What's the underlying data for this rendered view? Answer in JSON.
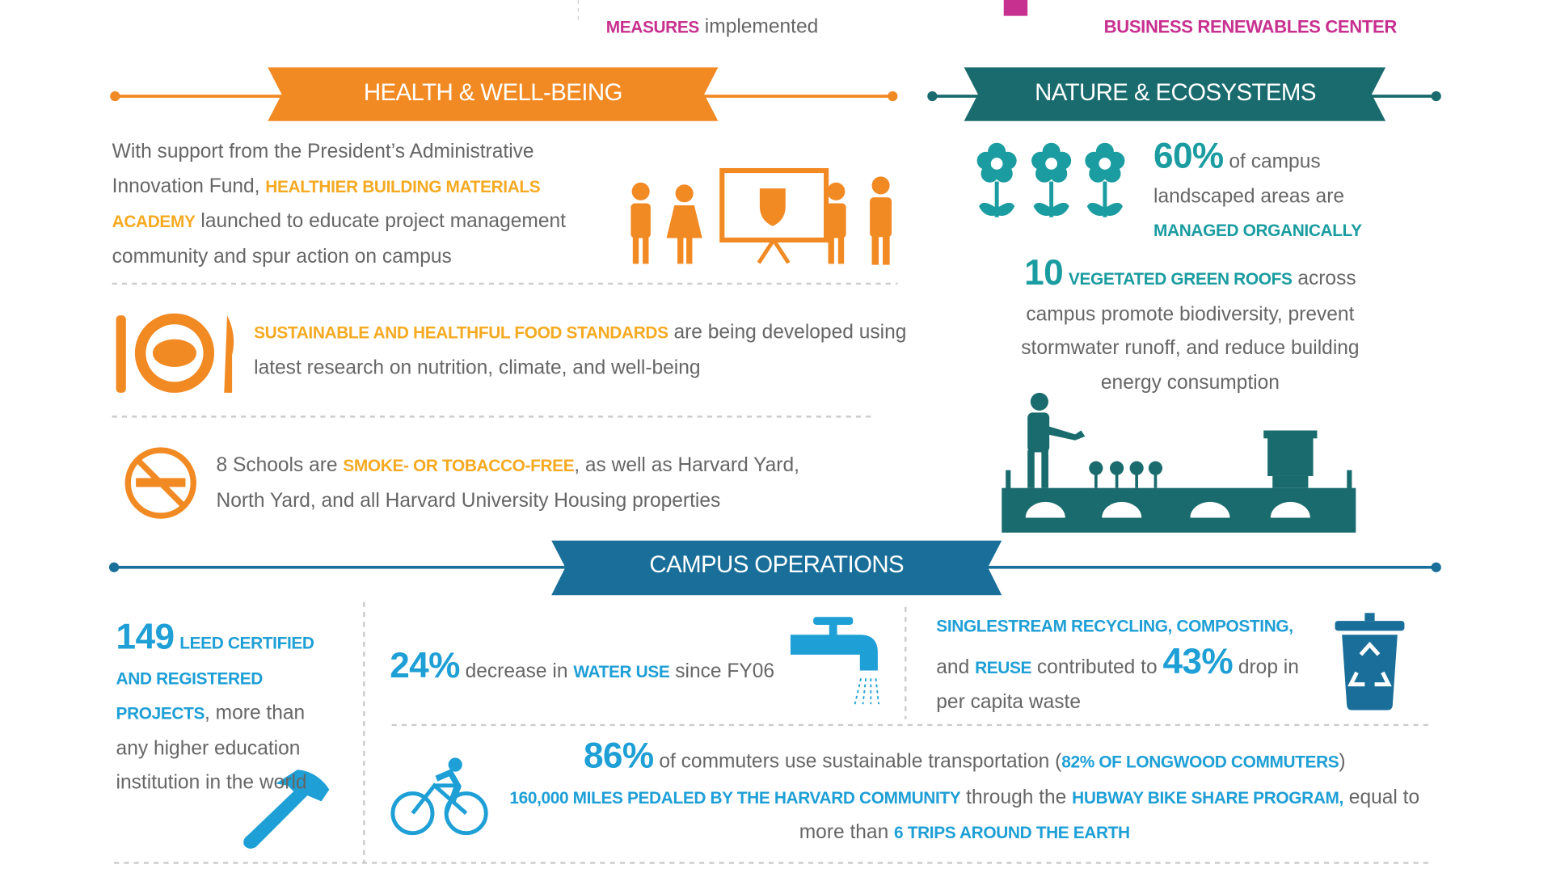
{
  "top": {
    "left": [
      "MEASURES",
      " implemented"
    ],
    "right": "BUSINESS RENEWABLES CENTER"
  },
  "health": {
    "title": "HEALTH & WELL-BEING",
    "items": [
      [
        "With support from the President’s Administrative Innovation Fund, ",
        "HEALTHIER BUILDING MATERIALS ACADEMY",
        " launched to educate project management community and spur action on campus"
      ],
      [
        "SUSTAINABLE AND HEALTHFUL FOOD STANDARDS",
        " are being developed using latest research on nutrition, climate, and well-being"
      ],
      [
        "8 Schools are ",
        "SMOKE- OR TOBACCO-FREE",
        ", as well as Harvard Yard, North Yard, and all Harvard University Housing properties"
      ]
    ]
  },
  "nature": {
    "title": "NATURE & ECOSYSTEMS",
    "stat1": {
      "number": "60%",
      "segments": [
        "of campus landscaped areas are",
        "MANAGED ORGANICALLY"
      ]
    },
    "stat2": {
      "number": "10",
      "segments": [
        "VEGETATED GREEN ROOFS",
        " across campus promote biodiversity, prevent stormwater runoff, and reduce building energy consumption"
      ]
    }
  },
  "operations": {
    "title": "CAMPUS OPERATIONS",
    "leed": {
      "number": "149",
      "segments": [
        "LEED CERTIFIED AND REGISTERED PROJECTS",
        ", more than any higher education institution in the world"
      ]
    },
    "water": {
      "number": "24%",
      "segments": [
        "decrease in ",
        "WATER USE",
        " since FY06"
      ]
    },
    "recycling": {
      "segments": [
        "SINGLESTREAM RECYCLING, COMPOSTING,",
        " and ",
        "REUSE",
        " contributed to ",
        "43%",
        " drop in per capita waste"
      ]
    },
    "transport": {
      "number": "86%",
      "segments": [
        " of commuters use sustainable transportation (",
        "82% OF LONGWOOD COMMUTERS",
        ")",
        "160,000 MILES PEDALED BY THE HARVARD COMMUNITY",
        " through the ",
        "HUBWAY BIKE SHARE PROGRAM,",
        " equal to more than ",
        "6 TRIPS AROUND THE EARTH"
      ]
    }
  }
}
